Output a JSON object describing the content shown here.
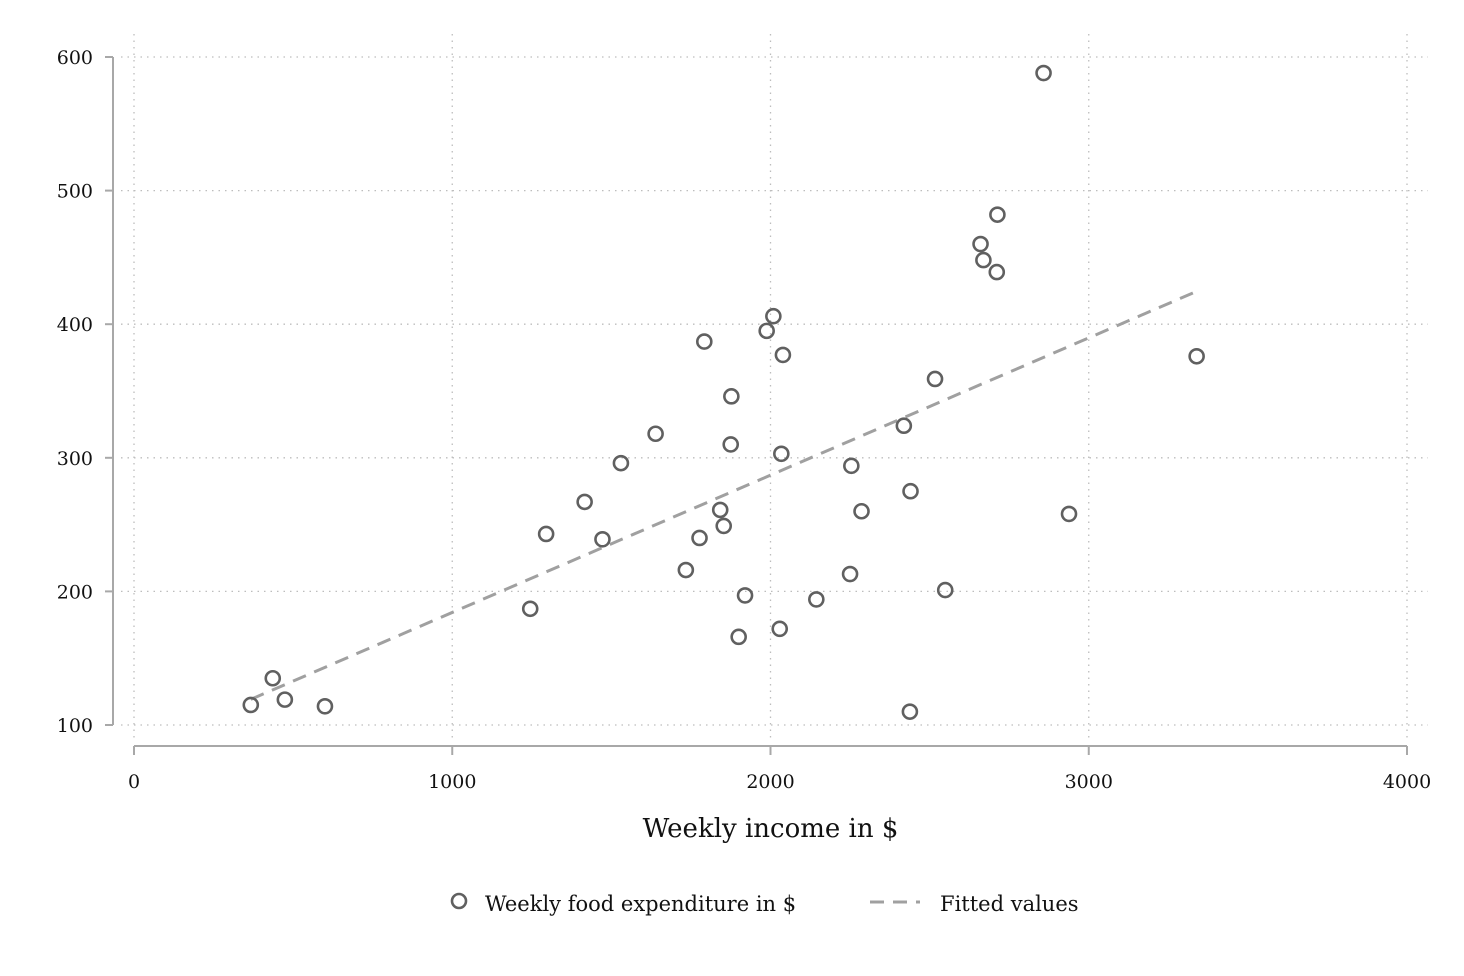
{
  "chart_data": {
    "type": "scatter",
    "title": "",
    "xlabel": "Weekly income in $",
    "ylabel": "",
    "xlim": [
      0,
      4000
    ],
    "ylim": [
      100,
      600
    ],
    "x_ticks": [
      0,
      1000,
      2000,
      3000,
      4000
    ],
    "y_ticks": [
      100,
      200,
      300,
      400,
      500,
      600
    ],
    "grid": "dotted, both axes",
    "legend_position": "bottom",
    "colors": {
      "points": "#606060",
      "fit_line": "#a0a0a0",
      "axes": "#a8a8a8",
      "grid": "#bdbdbd"
    },
    "series": [
      {
        "name": "Weekly food expenditure in $",
        "type": "scatter",
        "marker": "hollow-circle",
        "points": [
          {
            "x": 367,
            "y": 115
          },
          {
            "x": 436,
            "y": 135
          },
          {
            "x": 474,
            "y": 119
          },
          {
            "x": 600,
            "y": 114
          },
          {
            "x": 1245,
            "y": 187
          },
          {
            "x": 1295,
            "y": 243
          },
          {
            "x": 1416,
            "y": 267
          },
          {
            "x": 1472,
            "y": 239
          },
          {
            "x": 1530,
            "y": 296
          },
          {
            "x": 1639,
            "y": 318
          },
          {
            "x": 1734,
            "y": 216
          },
          {
            "x": 1777,
            "y": 240
          },
          {
            "x": 1792,
            "y": 387
          },
          {
            "x": 1842,
            "y": 261
          },
          {
            "x": 1853,
            "y": 249
          },
          {
            "x": 1875,
            "y": 310
          },
          {
            "x": 1877,
            "y": 346
          },
          {
            "x": 1900,
            "y": 166
          },
          {
            "x": 1920,
            "y": 197
          },
          {
            "x": 1988,
            "y": 395
          },
          {
            "x": 2009,
            "y": 406
          },
          {
            "x": 2029,
            "y": 172
          },
          {
            "x": 2034,
            "y": 303
          },
          {
            "x": 2039,
            "y": 377
          },
          {
            "x": 2144,
            "y": 194
          },
          {
            "x": 2250,
            "y": 213
          },
          {
            "x": 2254,
            "y": 294
          },
          {
            "x": 2286,
            "y": 260
          },
          {
            "x": 2419,
            "y": 324
          },
          {
            "x": 2438,
            "y": 110
          },
          {
            "x": 2440,
            "y": 275
          },
          {
            "x": 2517,
            "y": 359
          },
          {
            "x": 2549,
            "y": 201
          },
          {
            "x": 2660,
            "y": 460
          },
          {
            "x": 2669,
            "y": 448
          },
          {
            "x": 2711,
            "y": 439
          },
          {
            "x": 2713,
            "y": 482
          },
          {
            "x": 2858,
            "y": 588
          },
          {
            "x": 2938,
            "y": 258
          },
          {
            "x": 3339,
            "y": 376
          }
        ]
      },
      {
        "name": "Fitted values",
        "type": "line",
        "style": "dashed",
        "points": [
          {
            "x": 367,
            "y": 119.2
          },
          {
            "x": 3339,
            "y": 424.6
          }
        ]
      }
    ]
  }
}
